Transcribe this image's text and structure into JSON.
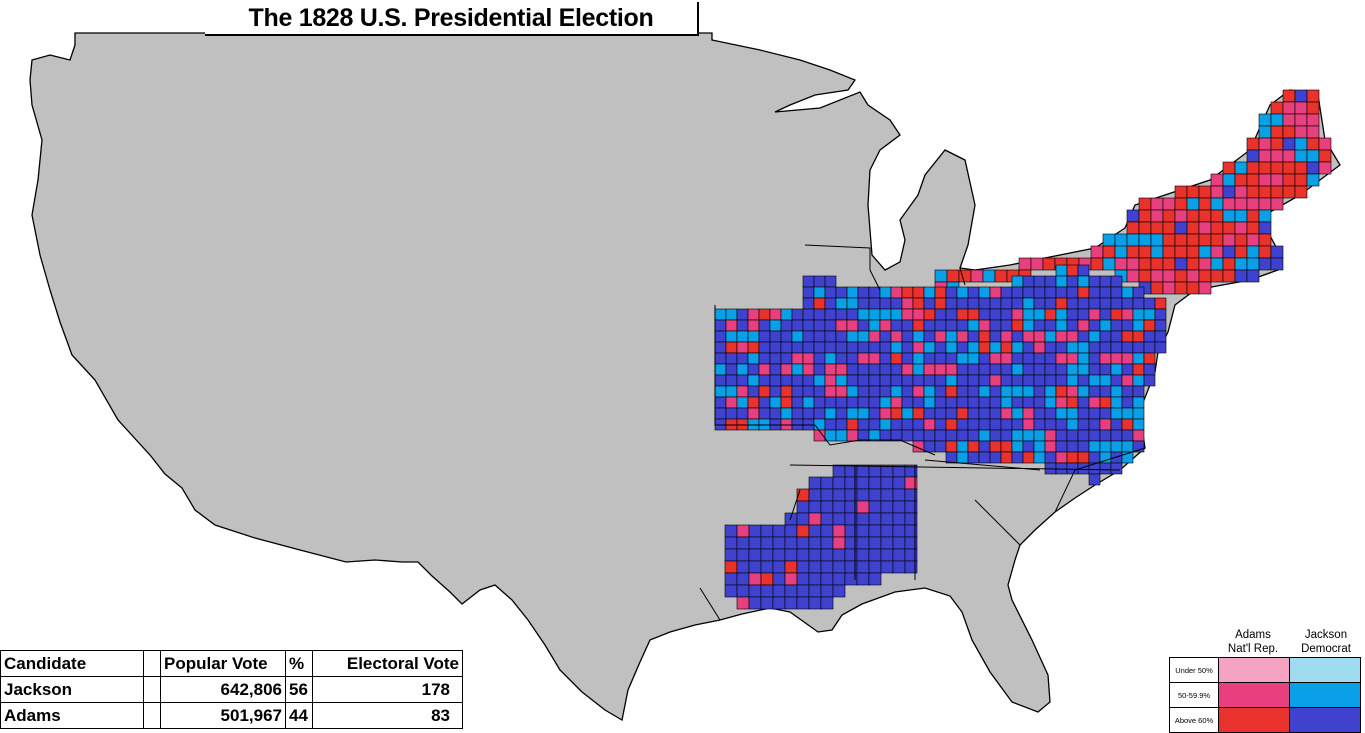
{
  "title": "The 1828 U.S. Presidential Election",
  "colors": {
    "land": "#c0c0c0",
    "border": "#000000",
    "adams_under50": "#f4a3c3",
    "adams_50_60": "#e8407f",
    "adams_above60": "#e8322b",
    "jackson_under50": "#a0dcef",
    "jackson_50_60": "#0aa0e8",
    "jackson_above60": "#3f42cf"
  },
  "results_table": {
    "headers": {
      "candidate": "Candidate",
      "popular_vote": "Popular Vote",
      "percent": "%",
      "electoral_vote": "Electoral Vote"
    },
    "rows": [
      {
        "candidate": "Jackson",
        "popular_vote": "642,806",
        "percent": "56",
        "electoral_vote": "178"
      },
      {
        "candidate": "Adams",
        "popular_vote": "501,967",
        "percent": "44",
        "electoral_vote": "83"
      }
    ]
  },
  "legend": {
    "adams_header": [
      "Adams",
      "Nat'l Rep."
    ],
    "jackson_header": [
      "Jackson",
      "Democrat"
    ],
    "rows": [
      {
        "label": "Under 50%",
        "adams": "#f4a3c3",
        "jackson": "#a0dcef"
      },
      {
        "label": "50-59.9%",
        "adams": "#e8407f",
        "jackson": "#0aa0e8"
      },
      {
        "label": "Above 60%",
        "adams": "#e8322b",
        "jackson": "#3f42cf"
      }
    ]
  }
}
